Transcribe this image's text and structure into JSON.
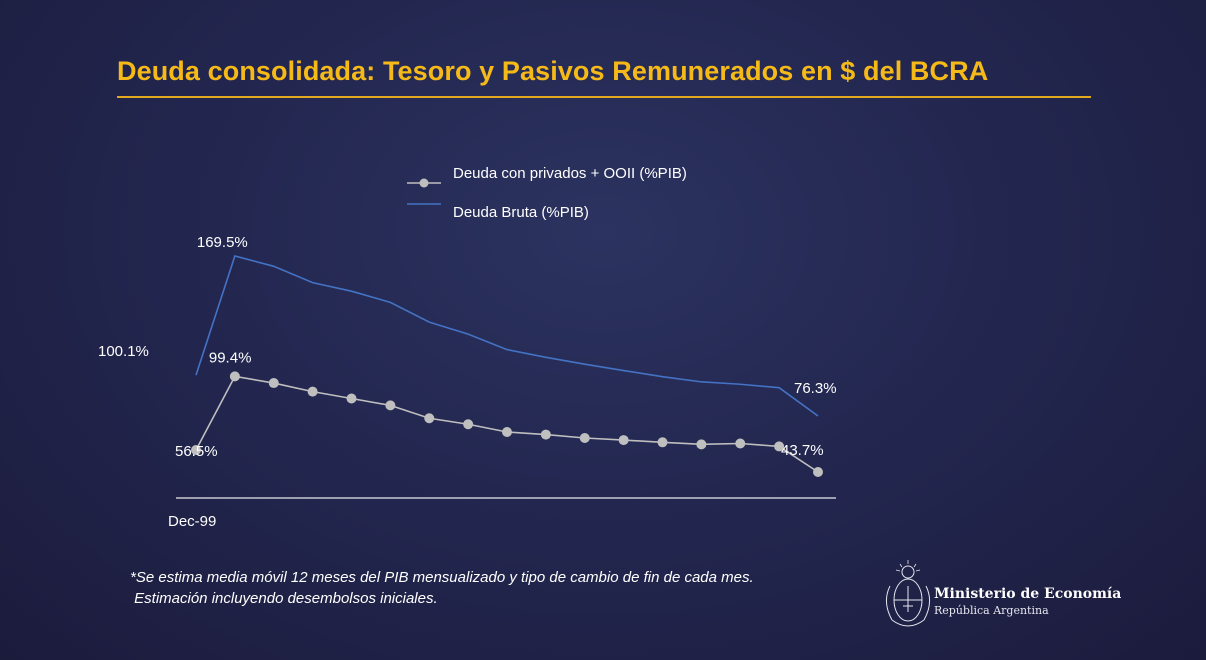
{
  "header": {
    "title": "Deuda consolidada: Tesoro y Pasivos Remunerados en $ del BCRA"
  },
  "chart_data": {
    "type": "line",
    "x_first_label": "Dec-99",
    "ylim": [
      20,
      180
    ],
    "legend_position": "top-center",
    "series": [
      {
        "name": "Deuda con privados + OOII (%PIB)",
        "color": "#bfbfbf",
        "marker": "circle",
        "values": [
          56.5,
          99.4,
          95.5,
          90.5,
          86.5,
          82.5,
          75,
          71.5,
          67,
          65.5,
          63.5,
          62.3,
          61,
          59.8,
          60.3,
          58.6,
          43.7
        ],
        "labels": {
          "0": "56.5%",
          "1": "99.4%",
          "16": "43.7%"
        }
      },
      {
        "name": "Deuda Bruta (%PIB)",
        "color": "#4472c4",
        "marker": "none",
        "values": [
          100.1,
          169.5,
          163.5,
          154,
          149,
          142.5,
          131,
          124,
          115,
          110.5,
          106.5,
          102.8,
          99.2,
          96.2,
          94.8,
          92.8,
          76.3
        ],
        "labels": {
          "0": "100.1%",
          "1": "169.5%",
          "16": "76.3%"
        }
      }
    ]
  },
  "footnote": {
    "line1": "*Se estima media móvil 12 meses del PIB mensualizado y tipo de cambio de fin de cada mes.",
    "line2": " Estimación incluyendo desembolsos iniciales."
  },
  "logo": {
    "name": "Ministerio de Economía",
    "subtitle": "República Argentina",
    "icon": "coat-of-arms-icon"
  },
  "colors": {
    "title": "#f5b918",
    "accent_rule": "#e2a81e",
    "background": "#232750"
  }
}
